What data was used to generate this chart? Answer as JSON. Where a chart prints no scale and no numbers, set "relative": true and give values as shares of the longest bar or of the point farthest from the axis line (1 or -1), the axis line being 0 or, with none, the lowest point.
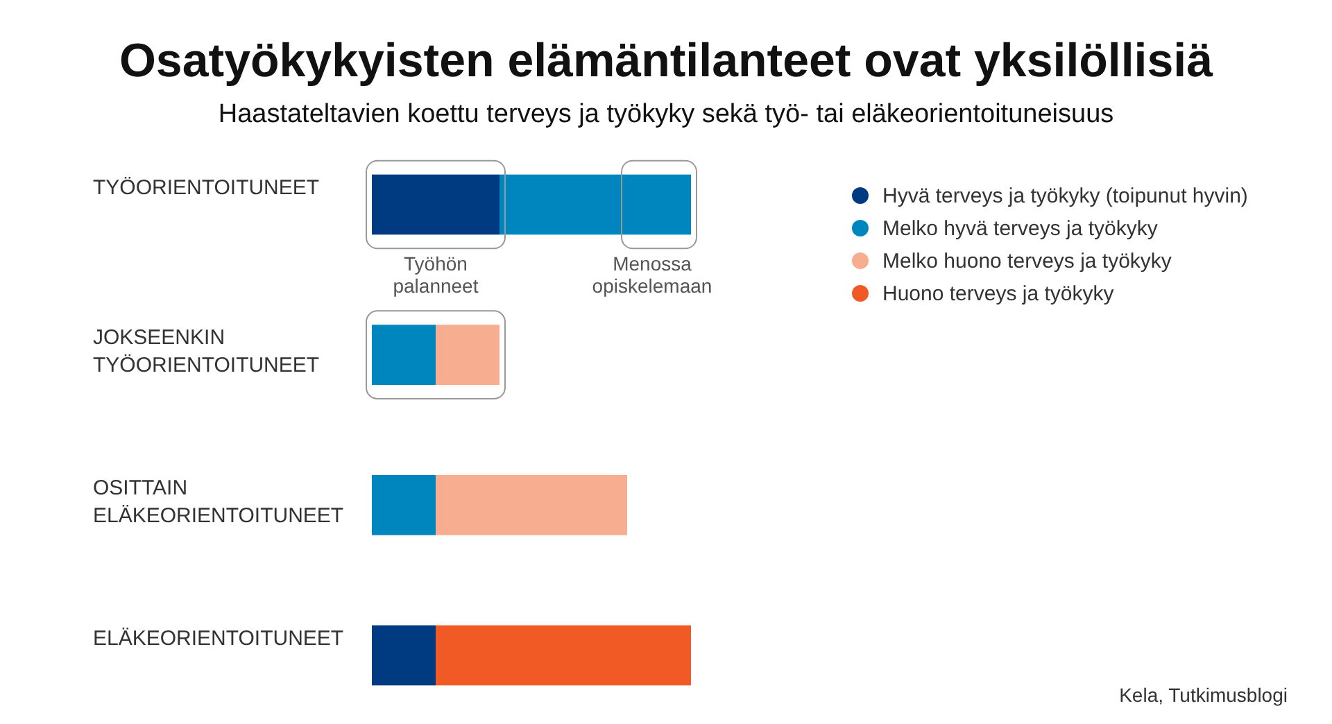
{
  "chart_data": {
    "type": "bar",
    "orientation": "horizontal",
    "stacked": true,
    "relative": true,
    "title": "Osatyökykyisten elämäntilanteet ovat yksilöllisiä",
    "subtitle": "Haastateltavien koettu terveys ja työkyky sekä työ- tai  eläkeorientoituneisuus",
    "categories": [
      "TYÖORIENTOITUNEET",
      "JOKSEENKIN TYÖORIENTOITUNEET",
      "OSITTAIN ELÄKEORIENTOITUNEET",
      "ELÄKEORIENTOITUNEET"
    ],
    "series": [
      {
        "name": "Hyvä terveys ja työkyky (toipunut hyvin)",
        "color": "#003a80",
        "values": [
          0.4,
          0,
          0,
          0.2
        ]
      },
      {
        "name": "Melko hyvä terveys ja työkyky",
        "color": "#0086be",
        "values": [
          0.6,
          0.2,
          0.2,
          0
        ]
      },
      {
        "name": "Melko huono terveys ja työkyky",
        "color": "#f7ad90",
        "values": [
          0,
          0.2,
          0.6,
          0
        ]
      },
      {
        "name": "Huono terveys ja työkyky",
        "color": "#f15a24",
        "values": [
          0,
          0,
          0,
          0.8
        ]
      }
    ],
    "legend": "top right",
    "annotations": [
      "Työhön palanneet",
      "Menossa opiskelemaan",
      "Kela, Tutkimusblogi"
    ]
  }
}
